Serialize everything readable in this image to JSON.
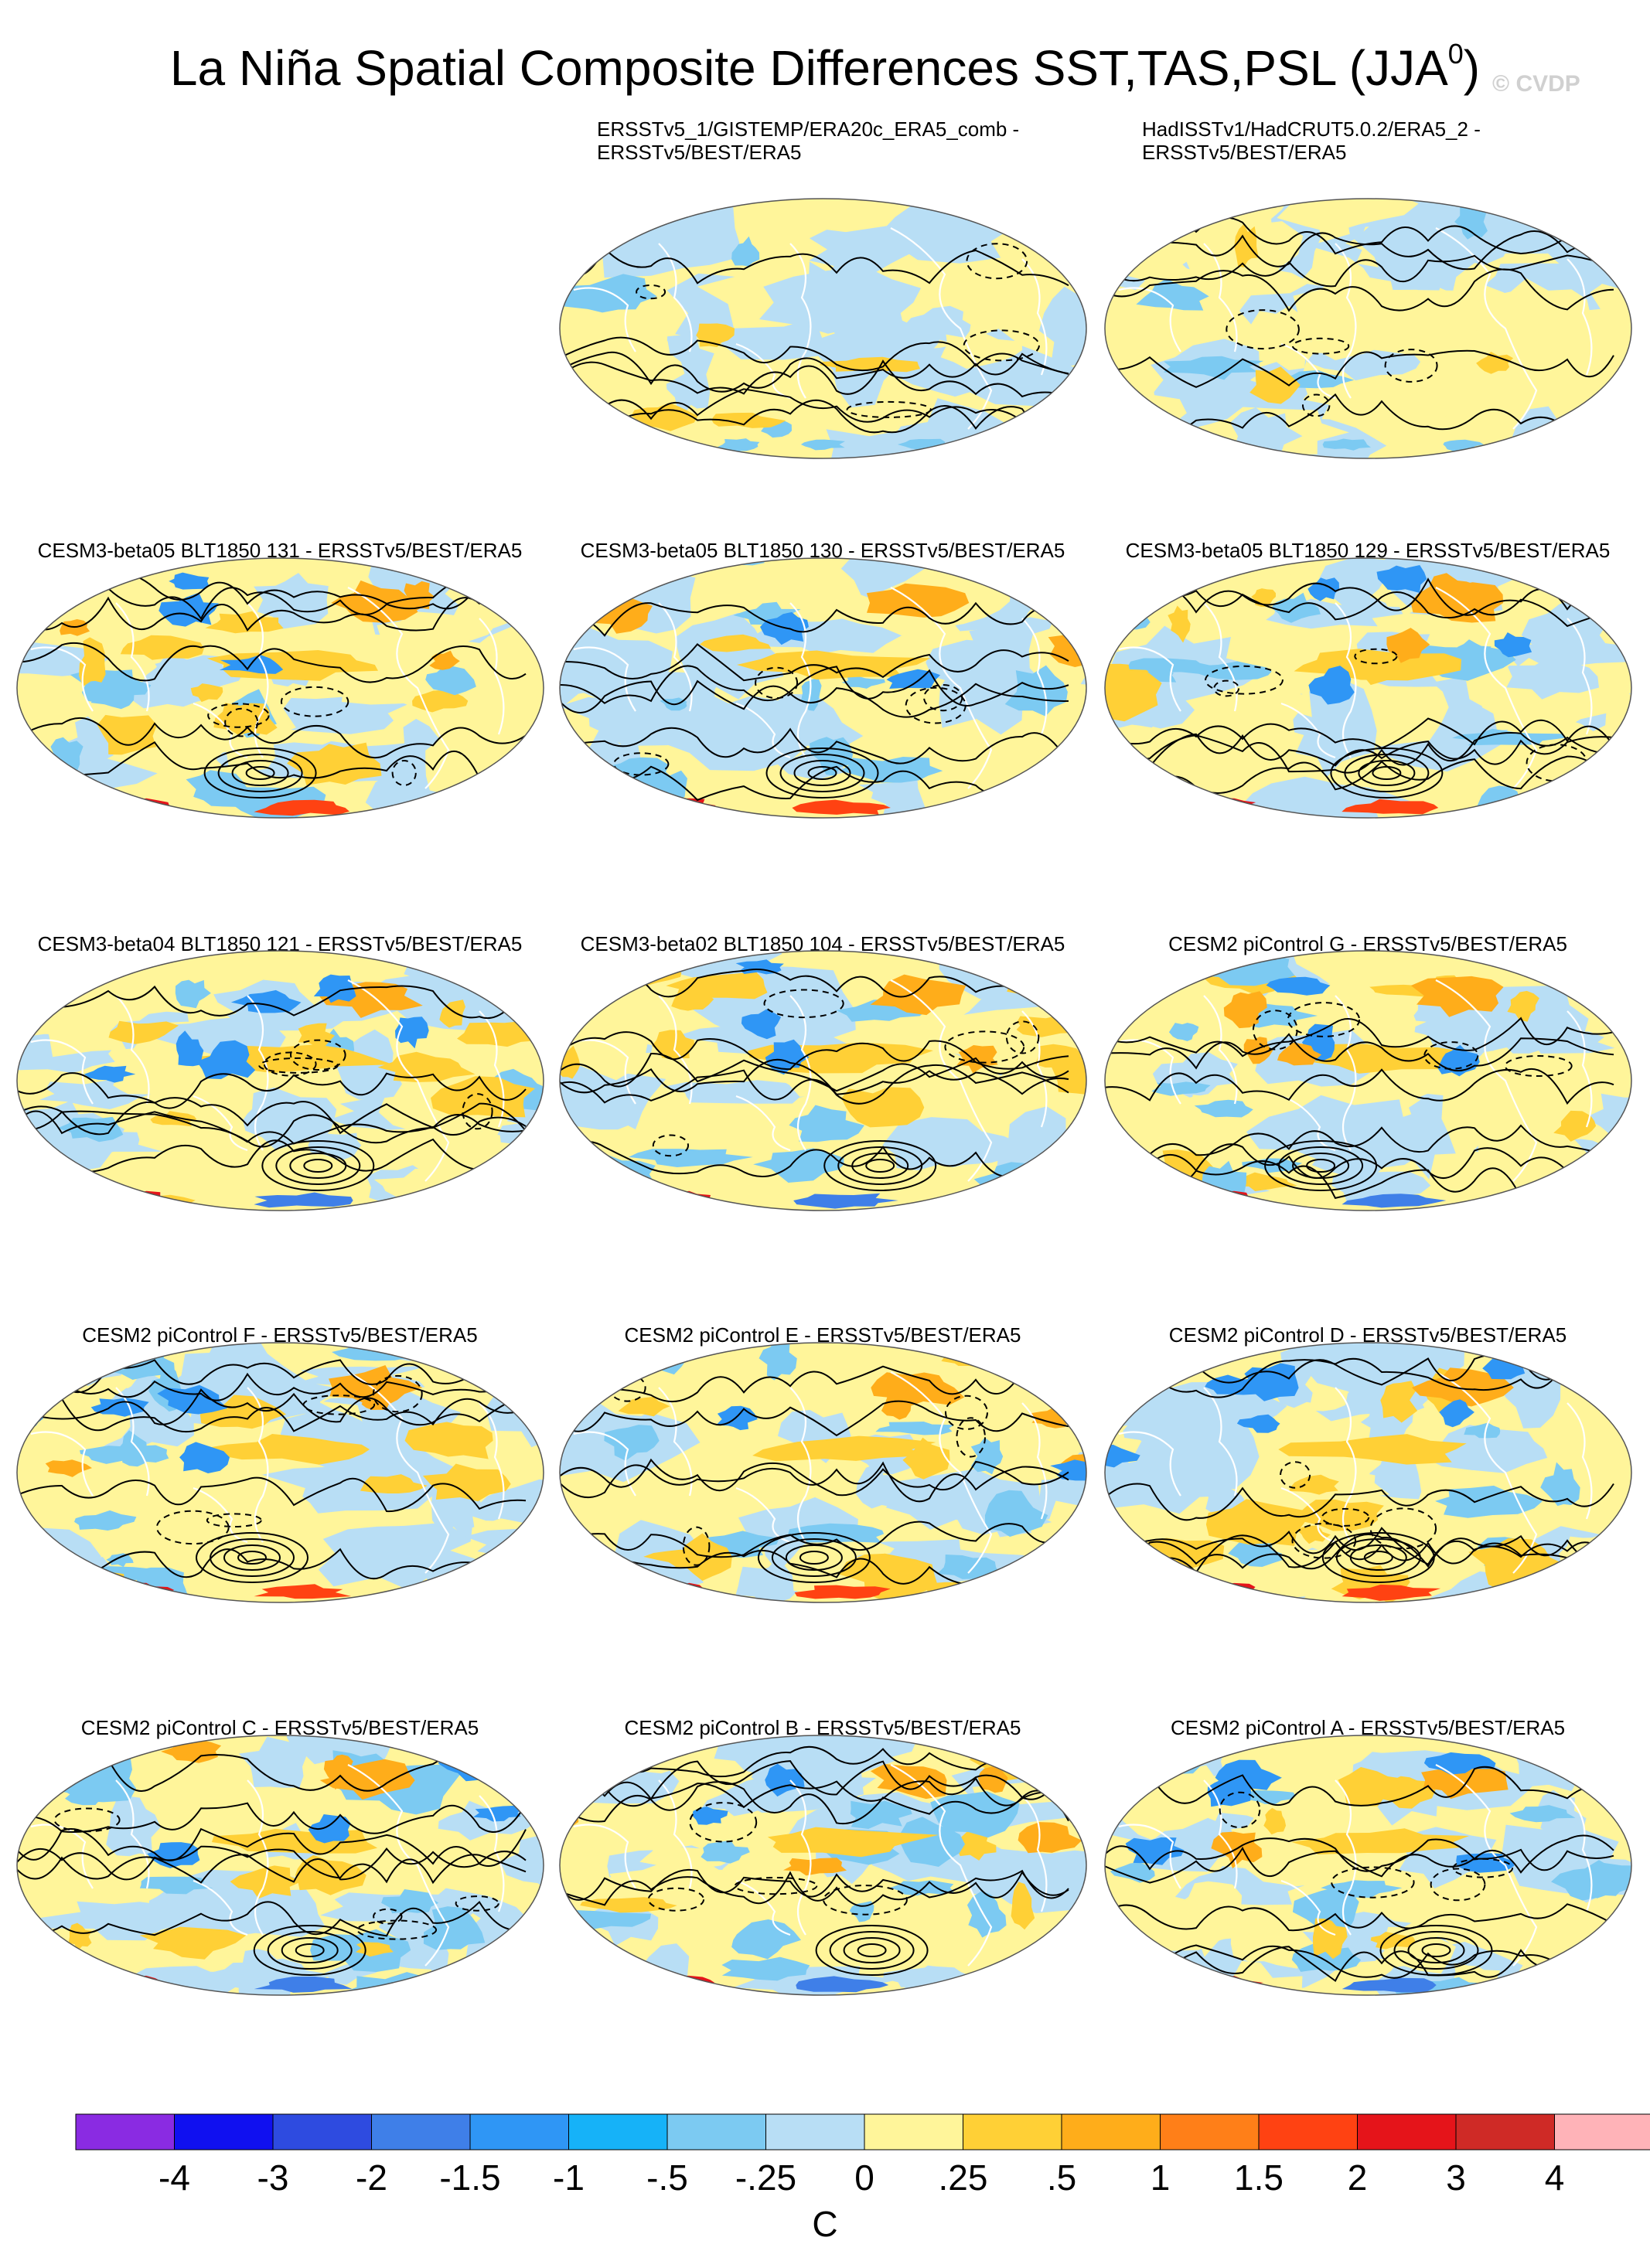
{
  "title": {
    "main": "La Niña Spatial Composite Differences SST,TAS,PSL (JJA",
    "superscript": "0",
    "close": ")"
  },
  "credit": "© CVDP",
  "panels": [
    {
      "id": "obs1",
      "title": "ERSSTv5_1/GISTEMP/ERA20c_ERA5_comb -\nERSSTv5/BEST/ERA5",
      "style": "obs1"
    },
    {
      "id": "obs2",
      "title": "HadISSTv1/HadCRUT5.0.2/ERA5_2 -\nERSSTv5/BEST/ERA5",
      "style": "obs2"
    },
    {
      "id": "m131",
      "title": "CESM3-beta05 BLT1850 131 - ERSSTv5/BEST/ERA5",
      "style": "model"
    },
    {
      "id": "m130",
      "title": "CESM3-beta05 BLT1850 130 - ERSSTv5/BEST/ERA5",
      "style": "model"
    },
    {
      "id": "m129",
      "title": "CESM3-beta05 BLT1850 129 - ERSSTv5/BEST/ERA5",
      "style": "model"
    },
    {
      "id": "m121",
      "title": "CESM3-beta04 BLT1850 121 - ERSSTv5/BEST/ERA5",
      "style": "model"
    },
    {
      "id": "m104",
      "title": "CESM3-beta02 BLT1850 104 - ERSSTv5/BEST/ERA5",
      "style": "model"
    },
    {
      "id": "pG",
      "title": "CESM2 piControl G - ERSSTv5/BEST/ERA5",
      "style": "model"
    },
    {
      "id": "pF",
      "title": "CESM2 piControl F - ERSSTv5/BEST/ERA5",
      "style": "model"
    },
    {
      "id": "pE",
      "title": "CESM2 piControl E - ERSSTv5/BEST/ERA5",
      "style": "model"
    },
    {
      "id": "pD",
      "title": "CESM2 piControl D - ERSSTv5/BEST/ERA5",
      "style": "model"
    },
    {
      "id": "pC",
      "title": "CESM2 piControl C - ERSSTv5/BEST/ERA5",
      "style": "model"
    },
    {
      "id": "pB",
      "title": "CESM2 piControl B - ERSSTv5/BEST/ERA5",
      "style": "model"
    },
    {
      "id": "pA",
      "title": "CESM2 piControl A - ERSSTv5/BEST/ERA5",
      "style": "model"
    }
  ],
  "colorbar": {
    "labels": [
      "-4",
      "-3",
      "-2",
      "-1.5",
      "-1",
      "-.5",
      "-.25",
      "0",
      ".25",
      ".5",
      "1",
      "1.5",
      "2",
      "3",
      "4"
    ],
    "colors": [
      "#8a2be2",
      "#1010f0",
      "#2e4be0",
      "#3f7fe8",
      "#2f96f5",
      "#16b2f8",
      "#7ccaf2",
      "#b8def5",
      "#fff59a",
      "#ffd036",
      "#ffad1a",
      "#ff7f18",
      "#ff4212",
      "#e5141a",
      "#cf2a26",
      "#ffb3b8"
    ],
    "units": "C"
  },
  "chart_data": {
    "type": "heatmap",
    "title": "La Niña Spatial Composite Differences SST,TAS,PSL (JJA0)",
    "variable_shaded": "SST/TAS difference",
    "variable_contoured": "PSL difference",
    "projection": "Robinson (global)",
    "color_levels": [
      -4,
      -3,
      -2,
      -1.5,
      -1,
      -0.5,
      -0.25,
      0,
      0.25,
      0.5,
      1,
      1.5,
      2,
      3,
      4
    ],
    "units": "C",
    "panel_count": 14
  }
}
